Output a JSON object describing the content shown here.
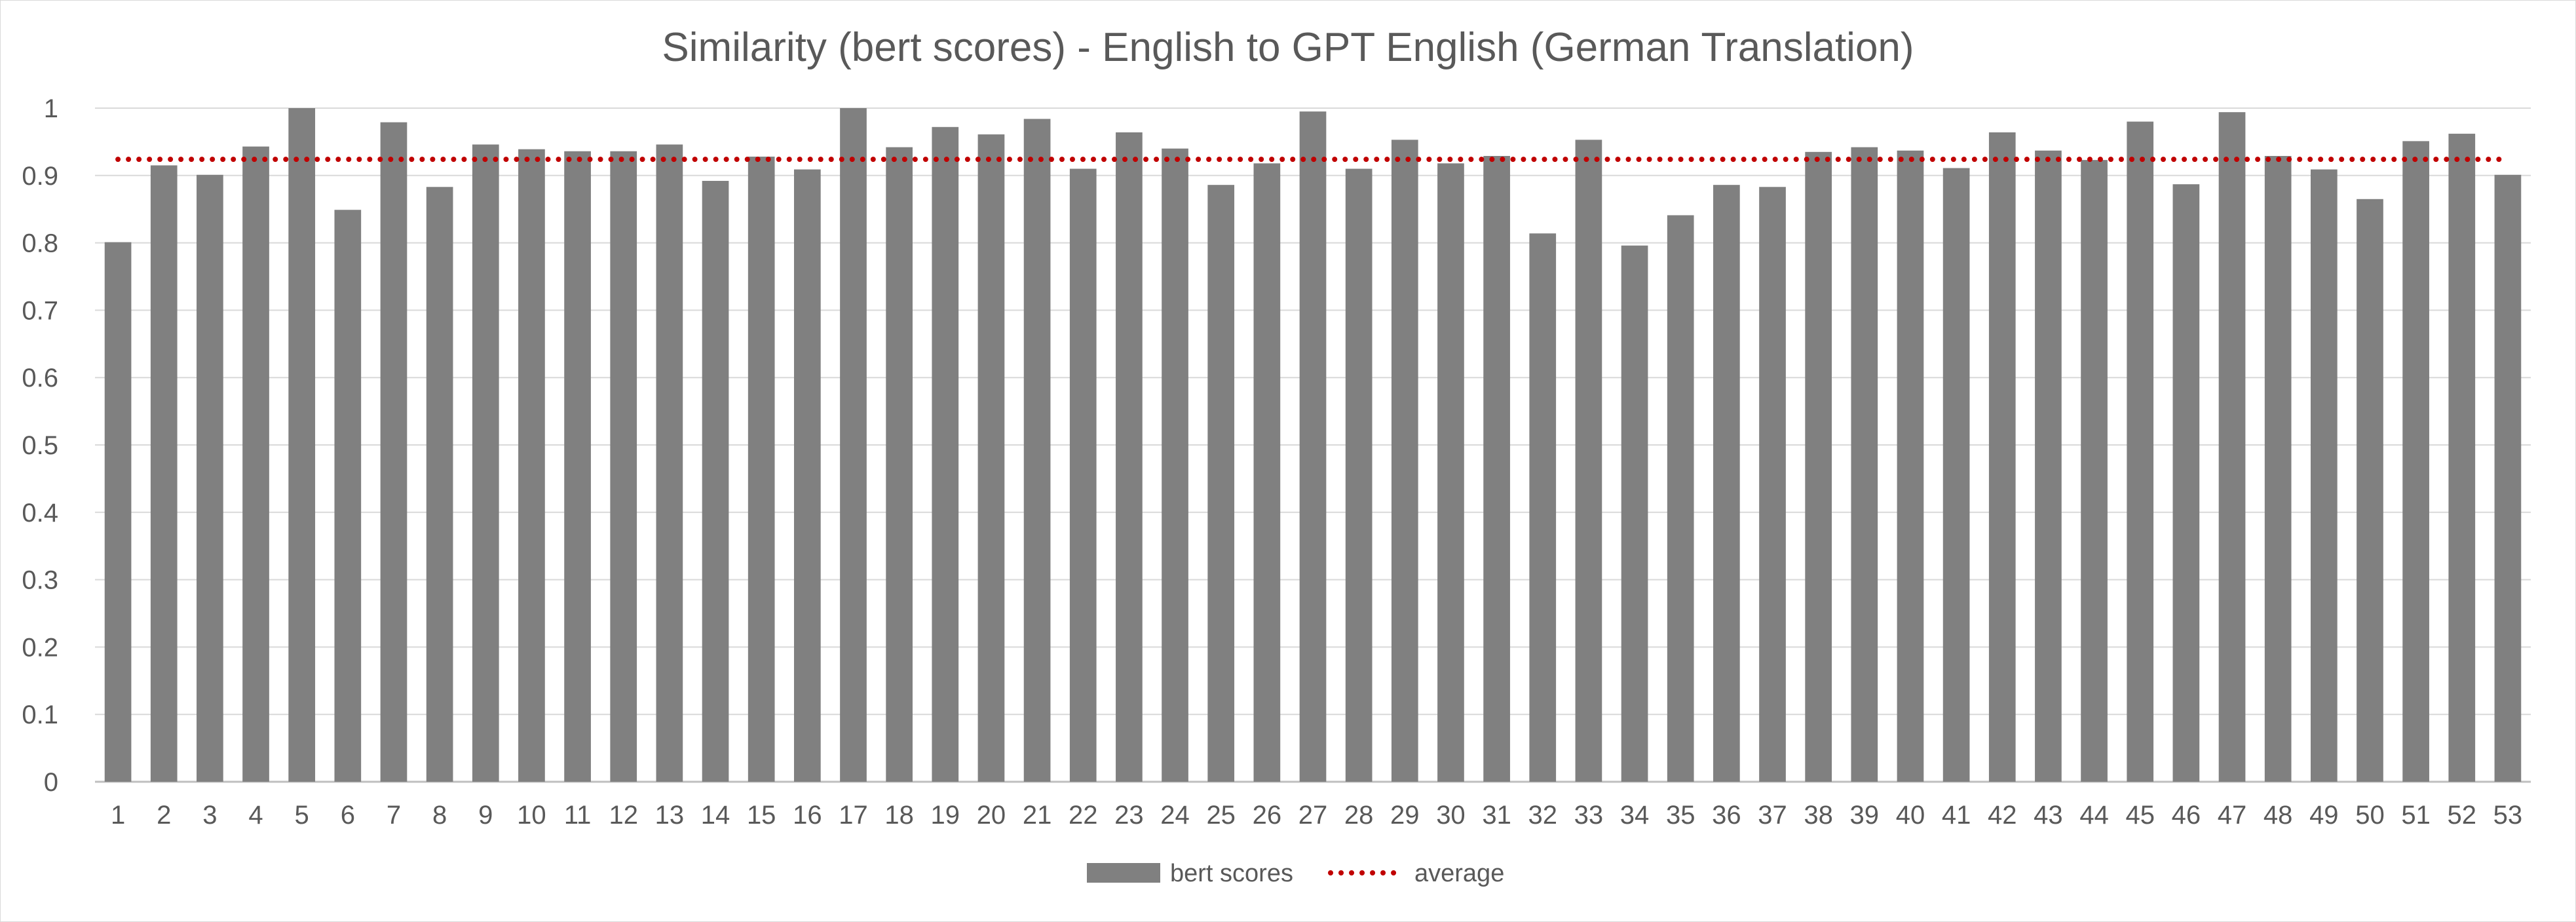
{
  "chart_data": {
    "type": "bar",
    "title": "Similarity (bert scores) - English to GPT English (German Translation)",
    "xlabel": "",
    "ylabel": "",
    "ylim": [
      0,
      1
    ],
    "yticks": [
      0,
      0.1,
      0.2,
      0.3,
      0.4,
      0.5,
      0.6,
      0.7,
      0.8,
      0.9,
      1
    ],
    "ytick_labels": [
      "0",
      "0.1",
      "0.2",
      "0.3",
      "0.4",
      "0.5",
      "0.6",
      "0.7",
      "0.8",
      "0.9",
      "1"
    ],
    "grid": true,
    "categories": [
      "1",
      "2",
      "3",
      "4",
      "5",
      "6",
      "7",
      "8",
      "9",
      "10",
      "11",
      "12",
      "13",
      "14",
      "15",
      "16",
      "17",
      "18",
      "19",
      "20",
      "21",
      "22",
      "23",
      "24",
      "25",
      "26",
      "27",
      "28",
      "29",
      "30",
      "31",
      "32",
      "33",
      "34",
      "35",
      "36",
      "37",
      "38",
      "39",
      "40",
      "41",
      "42",
      "43",
      "44",
      "45",
      "46",
      "47",
      "48",
      "49",
      "50",
      "51",
      "52",
      "53"
    ],
    "series": [
      {
        "name": "bert scores",
        "type": "bar",
        "color": "#808080",
        "values": [
          0.801,
          0.915,
          0.901,
          0.943,
          1.0,
          0.849,
          0.979,
          0.883,
          0.946,
          0.939,
          0.936,
          0.936,
          0.946,
          0.892,
          0.928,
          0.909,
          1.0,
          0.942,
          0.972,
          0.961,
          0.984,
          0.91,
          0.964,
          0.94,
          0.886,
          0.918,
          0.995,
          0.91,
          0.953,
          0.918,
          0.929,
          0.814,
          0.953,
          0.796,
          0.841,
          0.886,
          0.883,
          0.935,
          0.942,
          0.937,
          0.911,
          0.964,
          0.937,
          0.923,
          0.98,
          0.887,
          0.994,
          0.929,
          0.909,
          0.865,
          0.951,
          0.962,
          0.901
        ]
      },
      {
        "name": "average",
        "type": "line",
        "style": "dotted",
        "color": "#c00000",
        "value": 0.924
      }
    ],
    "legend": {
      "position": "bottom",
      "entries": [
        "bert scores",
        "average"
      ]
    }
  }
}
